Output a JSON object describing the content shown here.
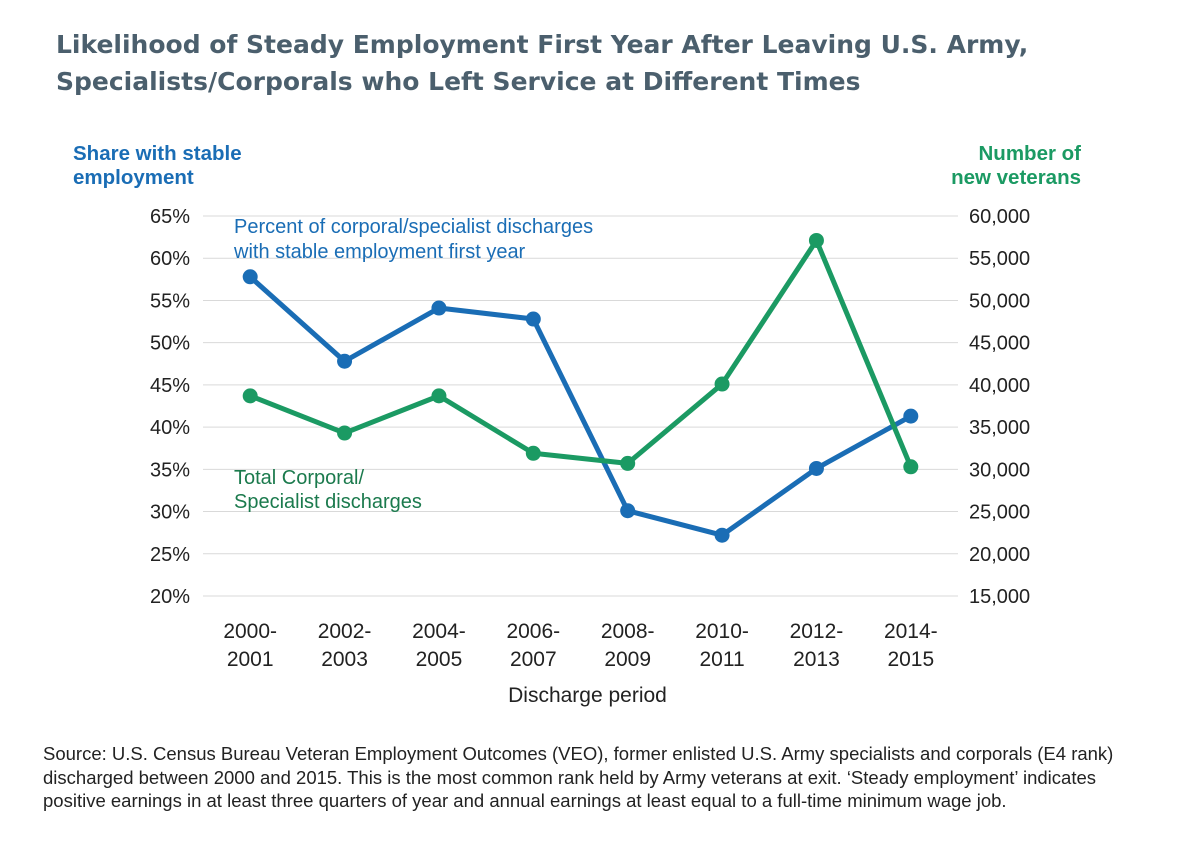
{
  "colors": {
    "primary": "#1a6db5",
    "secondary": "#1b9a63",
    "grid": "#d9d9d9",
    "title": "#4b5f6d",
    "text": "#222222",
    "annotation_green": "#1b7a4d"
  },
  "title": "Likelihood of Steady Employment First Year After Leaving U.S. Army, Specialists/Corporals who Left Service at Different Times",
  "source": "Source: U.S. Census Bureau Veteran Employment Outcomes (VEO), former enlisted U.S. Army specialists and corporals (E4 rank) discharged between 2000 and 2015. This is the most common rank held by Army veterans at exit. ‘Steady employment’ indicates positive earnings in at least three quarters of year and annual earnings at least equal to a full-time minimum wage job.",
  "chart_data": {
    "type": "line",
    "xlabel": "Discharge period",
    "categories": [
      [
        "2000-",
        "2001"
      ],
      [
        "2002-",
        "2003"
      ],
      [
        "2004-",
        "2005"
      ],
      [
        "2006-",
        "2007"
      ],
      [
        "2008-",
        "2009"
      ],
      [
        "2010-",
        "2011"
      ],
      [
        "2012-",
        "2013"
      ],
      [
        "2014-",
        "2015"
      ]
    ],
    "y_left": {
      "label": [
        "Share with stable",
        "employment"
      ],
      "ticks": [
        "20%",
        "25%",
        "30%",
        "35%",
        "40%",
        "45%",
        "50%",
        "55%",
        "60%",
        "65%"
      ],
      "range": [
        20,
        65
      ]
    },
    "y_right": {
      "label": [
        "Number of",
        "new veterans"
      ],
      "ticks": [
        "15,000",
        "20,000",
        "25,000",
        "30,000",
        "35,000",
        "40,000",
        "45,000",
        "50,000",
        "55,000",
        "60,000"
      ],
      "range": [
        15000,
        60000
      ]
    },
    "grid": true,
    "series": [
      {
        "name": "Percent of corporal/specialist discharges with stable employment first year",
        "name_lines": [
          "Percent of corporal/specialist discharges",
          "with stable employment first year"
        ],
        "axis": "left",
        "color": "#1a6db5",
        "values": [
          57.8,
          47.8,
          54.1,
          52.8,
          30.1,
          27.2,
          35.1,
          41.3
        ]
      },
      {
        "name": "Total Corporal/ Specialist discharges",
        "name_lines": [
          "Total Corporal/",
          "Specialist discharges"
        ],
        "axis": "right",
        "color": "#1b9a63",
        "values": [
          38700,
          34300,
          38700,
          31900,
          30700,
          40100,
          57100,
          30300
        ]
      }
    ]
  }
}
